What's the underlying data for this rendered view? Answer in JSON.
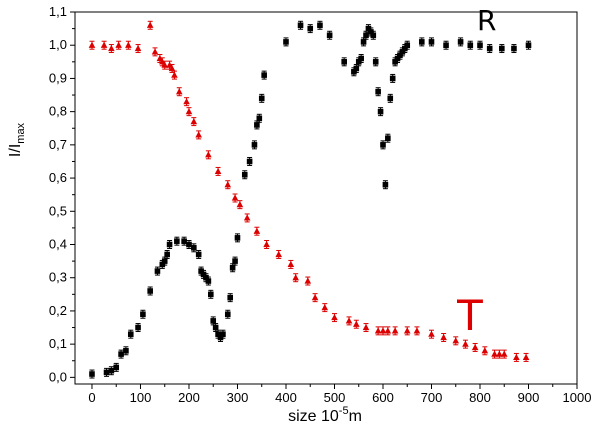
{
  "chart_data": {
    "type": "scatter",
    "xlabel": "size 10",
    "xlabel_exp": "-5",
    "xlabel_unit": "m",
    "ylabel": "I/I",
    "ylabel_sub": "max",
    "xlim": [
      -35,
      1000
    ],
    "ylim": [
      -0.02,
      1.1
    ],
    "x_ticks": [
      "0",
      "100",
      "200",
      "300",
      "400",
      "500",
      "600",
      "700",
      "800",
      "900",
      "1000"
    ],
    "y_ticks": [
      "0,0",
      "0,1",
      "0,2",
      "0,3",
      "0,4",
      "0,5",
      "0,6",
      "0,7",
      "0,8",
      "0,9",
      "1,0",
      "1,1"
    ],
    "grid": false,
    "legend": "none",
    "annotations": [
      {
        "text": "R",
        "color": "#000000"
      },
      {
        "text": "T",
        "color": "#dd0000"
      }
    ],
    "series": [
      {
        "label": "R",
        "color": "#000000",
        "marker": "square",
        "error": 0.012,
        "x": [
          0,
          30,
          40,
          50,
          60,
          70,
          80,
          95,
          105,
          120,
          135,
          145,
          150,
          155,
          160,
          175,
          190,
          200,
          210,
          220,
          225,
          230,
          235,
          240,
          245,
          250,
          255,
          260,
          265,
          270,
          280,
          285,
          290,
          295,
          300,
          315,
          325,
          335,
          340,
          345,
          350,
          355,
          400,
          430,
          450,
          470,
          490,
          520,
          540,
          545,
          550,
          555,
          560,
          565,
          570,
          575,
          580,
          585,
          590,
          595,
          600,
          605,
          610,
          615,
          620,
          625,
          630,
          635,
          640,
          645,
          650,
          680,
          700,
          730,
          760,
          780,
          800,
          820,
          845,
          870,
          900
        ],
        "y": [
          0.01,
          0.015,
          0.02,
          0.03,
          0.07,
          0.08,
          0.13,
          0.15,
          0.19,
          0.26,
          0.32,
          0.34,
          0.35,
          0.37,
          0.4,
          0.41,
          0.41,
          0.4,
          0.39,
          0.37,
          0.32,
          0.31,
          0.3,
          0.29,
          0.25,
          0.17,
          0.15,
          0.13,
          0.12,
          0.13,
          0.19,
          0.24,
          0.33,
          0.35,
          0.42,
          0.61,
          0.65,
          0.7,
          0.76,
          0.78,
          0.84,
          0.91,
          1.01,
          1.06,
          1.05,
          1.06,
          1.03,
          0.95,
          0.92,
          0.93,
          0.95,
          0.96,
          1.01,
          1.03,
          1.05,
          1.04,
          1.03,
          0.95,
          0.86,
          0.8,
          0.7,
          0.58,
          0.72,
          0.84,
          0.9,
          0.95,
          0.96,
          0.97,
          0.98,
          0.99,
          1.0,
          1.01,
          1.01,
          1.0,
          1.01,
          1.0,
          1.0,
          0.99,
          0.99,
          0.99,
          1.0
        ]
      },
      {
        "label": "T",
        "color": "#dd0000",
        "marker": "triangle",
        "error": 0.012,
        "x": [
          0,
          25,
          40,
          55,
          75,
          95,
          120,
          130,
          140,
          145,
          150,
          160,
          165,
          170,
          180,
          195,
          200,
          210,
          220,
          240,
          260,
          280,
          295,
          305,
          320,
          340,
          360,
          385,
          410,
          420,
          445,
          460,
          480,
          500,
          530,
          545,
          565,
          590,
          600,
          610,
          625,
          650,
          670,
          700,
          725,
          750,
          770,
          790,
          810,
          830,
          840,
          850,
          875,
          895
        ],
        "y": [
          1.0,
          1.0,
          0.99,
          1.0,
          1.0,
          0.99,
          1.06,
          0.98,
          0.96,
          0.95,
          0.94,
          0.94,
          0.93,
          0.91,
          0.86,
          0.83,
          0.8,
          0.77,
          0.73,
          0.67,
          0.62,
          0.58,
          0.54,
          0.52,
          0.48,
          0.44,
          0.4,
          0.37,
          0.34,
          0.3,
          0.29,
          0.24,
          0.21,
          0.18,
          0.17,
          0.16,
          0.15,
          0.14,
          0.14,
          0.14,
          0.14,
          0.14,
          0.14,
          0.13,
          0.12,
          0.11,
          0.1,
          0.09,
          0.08,
          0.07,
          0.07,
          0.07,
          0.06,
          0.06
        ]
      }
    ]
  }
}
